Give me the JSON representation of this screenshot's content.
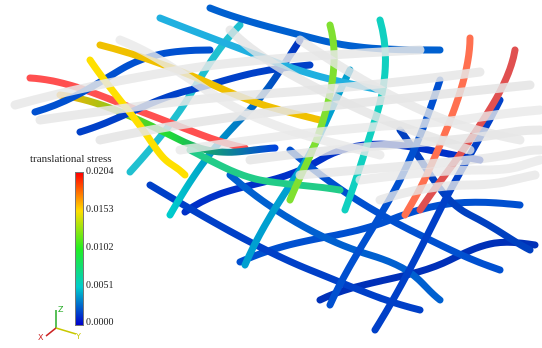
{
  "colorbar": {
    "title": "translational stress",
    "ticks": [
      "0.0204",
      "0.0153",
      "0.0102",
      "0.0051",
      "0.0000"
    ],
    "colors": [
      "#ff0000",
      "#ffdd00",
      "#22ee22",
      "#00cccc",
      "#0000cc"
    ]
  },
  "axes": {
    "z_label": "Z",
    "x_label": "X",
    "y_label": "Y",
    "z_color": "#22aa22",
    "x_color": "#cc2222",
    "y_color": "#c8c800"
  }
}
